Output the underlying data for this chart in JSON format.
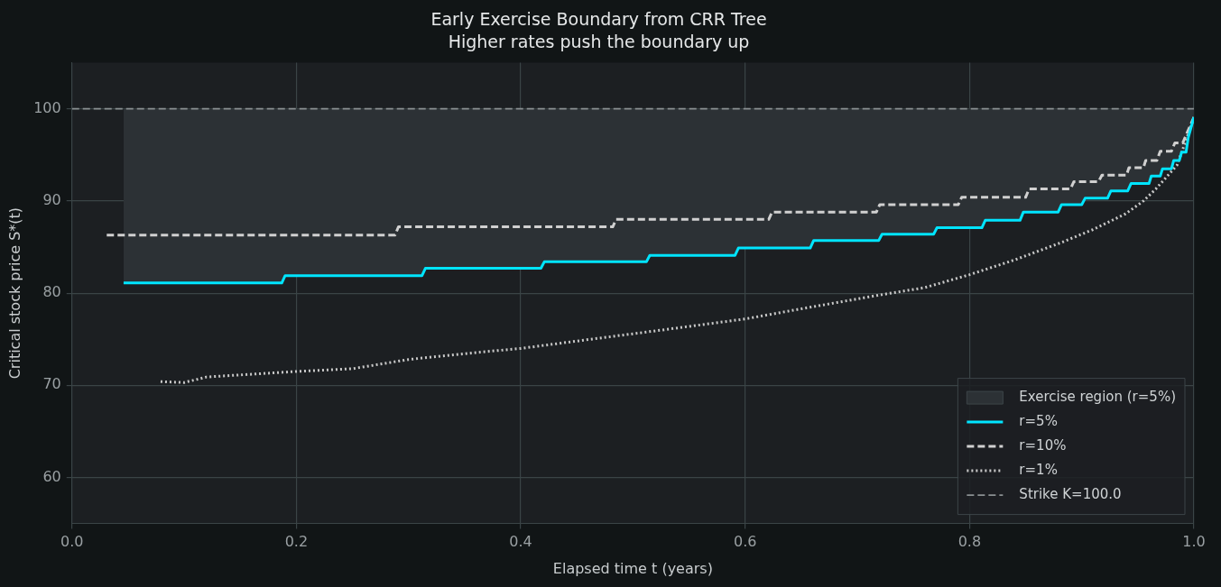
{
  "chart_data": {
    "type": "line",
    "title": "Early Exercise Boundary from CRR Tree",
    "subtitle": "Higher rates push the boundary up",
    "xlabel": "Elapsed time t (years)",
    "ylabel": "Critical stock price S*(t)",
    "xlim": [
      0,
      1
    ],
    "ylim": [
      55,
      105
    ],
    "xticks": [
      {
        "value": 0,
        "label": "0.0"
      },
      {
        "value": 0.2,
        "label": "0.2"
      },
      {
        "value": 0.4,
        "label": "0.4"
      },
      {
        "value": 0.6,
        "label": "0.6"
      },
      {
        "value": 0.8,
        "label": "0.8"
      },
      {
        "value": 1,
        "label": "1.0"
      }
    ],
    "yticks": [
      60,
      70,
      80,
      90,
      100
    ],
    "grid": true,
    "legend": "bottom right",
    "series": [
      {
        "name": "Exercise region (r=5%)",
        "type": "area",
        "color": "#2c3135",
        "x": [
          0.046,
          0.187,
          0.19,
          0.312,
          0.315,
          0.418,
          0.421,
          0.512,
          0.515,
          0.591,
          0.594,
          0.658,
          0.661,
          0.719,
          0.722,
          0.768,
          0.771,
          0.811,
          0.814,
          0.845,
          0.848,
          0.879,
          0.882,
          0.9,
          0.903,
          0.923,
          0.926,
          0.941,
          0.944,
          0.96,
          0.962,
          0.97,
          0.972,
          0.98,
          0.982,
          0.987,
          0.989,
          0.993,
          0.995,
          1.0
        ],
        "values": [
          100,
          100,
          100,
          100,
          100,
          100,
          100,
          100,
          100,
          100,
          100,
          100,
          100,
          100,
          100,
          100,
          100,
          100,
          100,
          100,
          100,
          100,
          100,
          100,
          100,
          100,
          100,
          100,
          100,
          100,
          100,
          100,
          100,
          100,
          100,
          100,
          100,
          100,
          100,
          100
        ]
      },
      {
        "name": "r=5%",
        "color": "#00e5ff",
        "line_style": "solid",
        "x": [
          0.046,
          0.187,
          0.19,
          0.312,
          0.315,
          0.418,
          0.421,
          0.512,
          0.515,
          0.591,
          0.594,
          0.658,
          0.661,
          0.719,
          0.722,
          0.768,
          0.771,
          0.811,
          0.814,
          0.845,
          0.848,
          0.879,
          0.882,
          0.9,
          0.903,
          0.923,
          0.926,
          0.941,
          0.944,
          0.96,
          0.962,
          0.97,
          0.972,
          0.98,
          0.982,
          0.987,
          0.989,
          0.993,
          0.995,
          1.0
        ],
        "values": [
          81.1,
          81.1,
          81.9,
          81.9,
          82.7,
          82.7,
          83.4,
          83.4,
          84.1,
          84.1,
          84.9,
          84.9,
          85.7,
          85.7,
          86.4,
          86.4,
          87.1,
          87.1,
          87.9,
          87.9,
          88.8,
          88.8,
          89.6,
          89.6,
          90.3,
          90.3,
          91.1,
          91.1,
          91.9,
          91.9,
          92.7,
          92.7,
          93.5,
          93.5,
          94.4,
          94.4,
          95.3,
          95.3,
          96.9,
          99.1
        ]
      },
      {
        "name": "r=10%",
        "color": "#d0d0d0",
        "line_style": "dashed",
        "x": [
          0.031,
          0.288,
          0.291,
          0.482,
          0.485,
          0.621,
          0.624,
          0.717,
          0.72,
          0.79,
          0.793,
          0.85,
          0.853,
          0.89,
          0.893,
          0.915,
          0.918,
          0.94,
          0.942,
          0.955,
          0.957,
          0.967,
          0.97,
          0.98,
          0.983,
          0.99,
          1.0
        ],
        "values": [
          86.3,
          86.3,
          87.2,
          87.2,
          88.0,
          88.0,
          88.8,
          88.8,
          89.6,
          89.6,
          90.4,
          90.4,
          91.3,
          91.3,
          92.1,
          92.1,
          92.8,
          92.8,
          93.6,
          93.6,
          94.4,
          94.4,
          95.4,
          95.4,
          96.3,
          96.3,
          99.1
        ]
      },
      {
        "name": "r=1%",
        "color": "#c8c8c8",
        "line_style": "dotted",
        "x": [
          0.079,
          0.1,
          0.12,
          0.2,
          0.25,
          0.3,
          0.364,
          0.4,
          0.45,
          0.526,
          0.6,
          0.65,
          0.72,
          0.76,
          0.8,
          0.84,
          0.884,
          0.91,
          0.939,
          0.955,
          0.966,
          0.985,
          1.0
        ],
        "values": [
          70.4,
          70.3,
          70.9,
          71.5,
          71.8,
          72.8,
          73.6,
          74.0,
          74.8,
          76.0,
          77.2,
          78.3,
          79.8,
          80.6,
          82.0,
          83.6,
          85.6,
          86.9,
          88.6,
          90.0,
          91.3,
          93.9,
          99.0
        ]
      }
    ],
    "ref_lines": [
      {
        "axis": "y",
        "value": 100,
        "label": "Strike K=100.0",
        "color": "#8a9092",
        "line_style": "dashed"
      }
    ]
  }
}
